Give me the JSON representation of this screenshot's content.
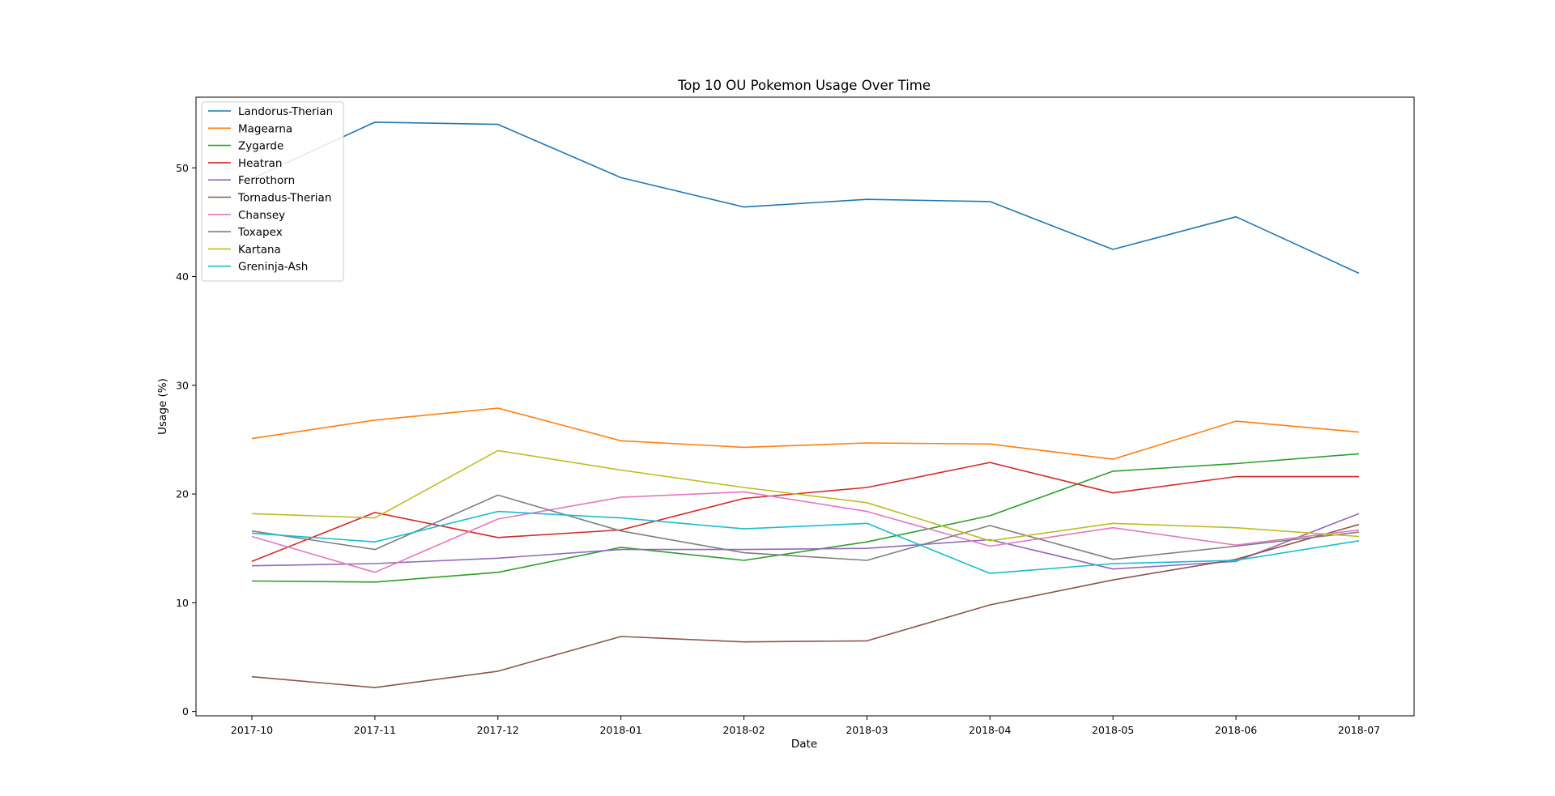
{
  "chart_data": {
    "type": "line",
    "title": "Top 10 OU Pokemon Usage Over Time",
    "xlabel": "Date",
    "ylabel": "Usage (%)",
    "categories": [
      "2017-10",
      "2017-11",
      "2017-12",
      "2018-01",
      "2018-02",
      "2018-03",
      "2018-04",
      "2018-05",
      "2018-06",
      "2018-07"
    ],
    "yticks": [
      0,
      10,
      20,
      30,
      40,
      50
    ],
    "ylim": [
      -0.4,
      56.5
    ],
    "grid": false,
    "legend_position": "upper-left",
    "series": [
      {
        "name": "Landorus-Therian",
        "color": "#1f77b4",
        "values": [
          49.0,
          54.2,
          54.0,
          49.1,
          46.4,
          47.1,
          46.9,
          42.5,
          45.5,
          40.3
        ]
      },
      {
        "name": "Magearna",
        "color": "#ff7f0e",
        "values": [
          25.1,
          26.8,
          27.9,
          24.9,
          24.3,
          24.7,
          24.6,
          23.2,
          26.7,
          25.7
        ]
      },
      {
        "name": "Zygarde",
        "color": "#2ca02c",
        "values": [
          12.0,
          11.9,
          12.8,
          15.1,
          13.9,
          15.6,
          18.0,
          22.1,
          22.8,
          23.7
        ]
      },
      {
        "name": "Heatran",
        "color": "#d62728",
        "values": [
          13.8,
          18.3,
          16.0,
          16.7,
          19.6,
          20.6,
          22.9,
          20.1,
          21.6,
          21.6
        ]
      },
      {
        "name": "Ferrothorn",
        "color": "#9467bd",
        "values": [
          13.4,
          13.6,
          14.1,
          14.9,
          14.9,
          15.0,
          15.8,
          13.1,
          13.8,
          18.2
        ]
      },
      {
        "name": "Tornadus-Therian",
        "color": "#8c564b",
        "values": [
          3.2,
          2.2,
          3.7,
          6.9,
          6.4,
          6.5,
          9.8,
          12.1,
          14.0,
          17.2
        ]
      },
      {
        "name": "Chansey",
        "color": "#e377c2",
        "values": [
          16.1,
          12.8,
          17.7,
          19.7,
          20.2,
          18.4,
          15.2,
          16.9,
          15.3,
          16.7
        ]
      },
      {
        "name": "Toxapex",
        "color": "#7f7f7f",
        "values": [
          16.6,
          14.9,
          19.9,
          16.6,
          14.6,
          13.9,
          17.1,
          14.0,
          15.2,
          16.5
        ]
      },
      {
        "name": "Kartana",
        "color": "#bcbd22",
        "values": [
          18.2,
          17.8,
          24.0,
          22.2,
          20.6,
          19.2,
          15.7,
          17.3,
          16.9,
          16.1
        ]
      },
      {
        "name": "Greninja-Ash",
        "color": "#17becf",
        "values": [
          16.4,
          15.6,
          18.4,
          17.8,
          16.8,
          17.3,
          12.7,
          13.6,
          13.9,
          15.7
        ]
      }
    ]
  }
}
